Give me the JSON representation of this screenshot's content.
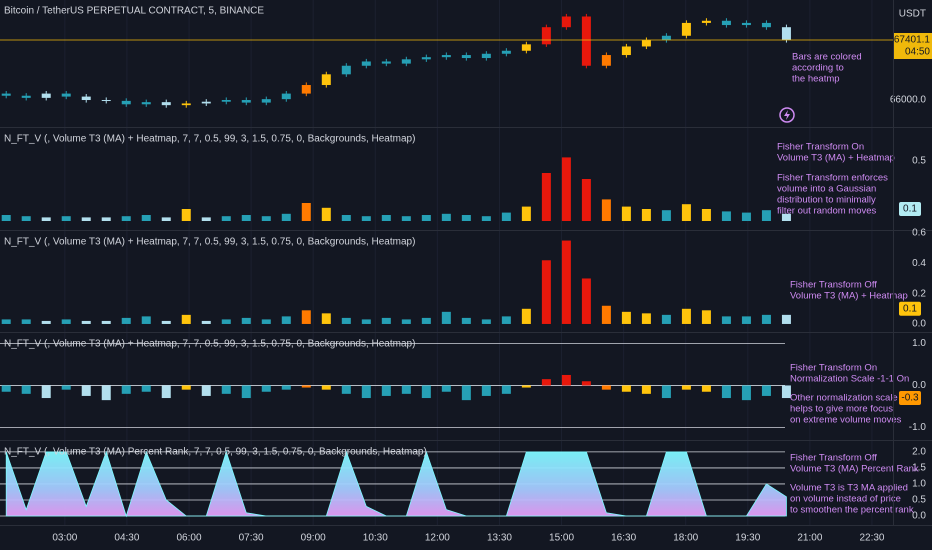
{
  "chart_data": [
    {
      "type": "candlestick",
      "title": "Bitcoin / TetherUS PERPETUAL CONTRACT, 5, BINANCE",
      "currency": "USDT",
      "countdown": "04:50",
      "x": [
        95,
        124,
        153,
        182,
        211,
        240,
        269,
        298,
        327,
        356,
        385,
        414,
        443,
        472,
        501,
        530,
        559,
        588,
        617,
        646,
        675,
        704,
        733,
        762,
        791,
        820,
        849,
        878,
        907,
        936,
        965,
        994,
        1023,
        1052,
        1081,
        1110,
        1139,
        1168,
        1197,
        1226
      ],
      "open": [
        66150,
        66100,
        66050,
        66150,
        66080,
        66000,
        65980,
        65900,
        65950,
        65880,
        65920,
        65960,
        66000,
        65940,
        66020,
        66150,
        66350,
        66600,
        66800,
        66900,
        66850,
        66950,
        67000,
        67050,
        66980,
        67080,
        67150,
        67300,
        67700,
        67950,
        66800,
        67050,
        67250,
        67400,
        67500,
        67800,
        67850,
        67750,
        67800,
        67700
      ],
      "high": [
        66210,
        66160,
        66210,
        66210,
        66140,
        66060,
        66040,
        66010,
        66010,
        65980,
        66020,
        66060,
        66060,
        66080,
        66210,
        66410,
        66660,
        66860,
        66960,
        66960,
        67010,
        67060,
        67110,
        67110,
        67140,
        67210,
        67360,
        67760,
        68010,
        68010,
        67110,
        67310,
        67460,
        67560,
        67860,
        67910,
        67910,
        67860,
        67860,
        67760
      ],
      "low": [
        66040,
        65990,
        65990,
        66020,
        65940,
        65920,
        65840,
        65840,
        65820,
        65820,
        65860,
        65900,
        65880,
        65880,
        65960,
        66090,
        66290,
        66540,
        66740,
        66790,
        66790,
        66890,
        66940,
        66920,
        66920,
        67020,
        67090,
        67240,
        67640,
        66740,
        66740,
        66990,
        67190,
        67340,
        67440,
        67740,
        67690,
        67690,
        67640,
        67341.1
      ],
      "close": [
        66100,
        66050,
        66150,
        66080,
        66000,
        65980,
        65900,
        65950,
        65880,
        65920,
        65960,
        66000,
        65940,
        66020,
        66150,
        66350,
        66600,
        66800,
        66900,
        66850,
        66950,
        67000,
        67050,
        66980,
        67080,
        67150,
        67300,
        67700,
        67950,
        66800,
        67050,
        67250,
        67400,
        67500,
        67800,
        67850,
        67750,
        67800,
        67700,
        67401.1
      ],
      "colors": [
        "#26a0b5",
        "#26a0b5",
        "#b2dfee",
        "#26a0b5",
        "#b2dfee",
        "#b2dfee",
        "#26a0b5",
        "#26a0b5",
        "#b2dfee",
        "#ffc40c",
        "#b2dfee",
        "#26a0b5",
        "#26a0b5",
        "#26a0b5",
        "#26a0b5",
        "#ff7a00",
        "#ffc40c",
        "#26a0b5",
        "#26a0b5",
        "#26a0b5",
        "#26a0b5",
        "#26a0b5",
        "#26a0b5",
        "#26a0b5",
        "#26a0b5",
        "#26a0b5",
        "#ffc40c",
        "#e8180c",
        "#e8180c",
        "#e8180c",
        "#ff7a00",
        "#ffc40c",
        "#ffc40c",
        "#26a0b5",
        "#ffc40c",
        "#ffc40c",
        "#26a0b5",
        "#26a0b5",
        "#26a0b5",
        "#b2dfee"
      ],
      "xlim": [
        86,
        1437
      ],
      "xticks": [
        {
          "value": 180,
          "label": "03:00"
        },
        {
          "value": 270,
          "label": "04:30"
        },
        {
          "value": 360,
          "label": "06:00"
        },
        {
          "value": 450,
          "label": "07:30"
        },
        {
          "value": 540,
          "label": "09:00"
        },
        {
          "value": 630,
          "label": "10:30"
        },
        {
          "value": 720,
          "label": "12:00"
        },
        {
          "value": 810,
          "label": "13:30"
        },
        {
          "value": 900,
          "label": "15:00"
        },
        {
          "value": 990,
          "label": "16:30"
        },
        {
          "value": 1080,
          "label": "18:00"
        },
        {
          "value": 1170,
          "label": "19:30"
        },
        {
          "value": 1260,
          "label": "21:00"
        },
        {
          "value": 1350,
          "label": "22:30"
        }
      ],
      "ylim": [
        65370,
        68335
      ],
      "yticks": [
        {
          "value": 66000,
          "label": "66000.0"
        }
      ],
      "price_line_color": "#f0b90b",
      "annotations": [
        [
          "Bars are colored",
          "according to",
          "the heatmp"
        ]
      ]
    },
    {
      "type": "bar",
      "title": "N_FT_V (, Volume T3 (MA) + Heatmap, 7, 7, 0.5, 99, 3, 1.5, 0.75, 0, Backgrounds, Heatmap)",
      "values": [
        0.05,
        0.04,
        0.03,
        0.04,
        0.03,
        0.03,
        0.04,
        0.05,
        0.03,
        0.1,
        0.03,
        0.04,
        0.05,
        0.04,
        0.06,
        0.15,
        0.11,
        0.05,
        0.04,
        0.05,
        0.04,
        0.05,
        0.06,
        0.05,
        0.04,
        0.07,
        0.12,
        0.4,
        0.53,
        0.35,
        0.18,
        0.12,
        0.1,
        0.09,
        0.14,
        0.1,
        0.08,
        0.07,
        0.09,
        0.06
      ],
      "ylim": [
        -0.075,
        0.775
      ],
      "yticks": [
        0.5
      ],
      "current": {
        "value": 0.1,
        "label": "0.1"
      },
      "current_color": "#b2ebf2",
      "annotations": [
        [
          "Fisher Transform On",
          "Volume T3 (MA) + Heatmap"
        ],
        [
          "Fisher Transform enforces",
          "volume into a Gaussian",
          "distribution to minimally",
          "filter out random moves"
        ]
      ]
    },
    {
      "type": "bar",
      "title": "N_FT_V (, Volume T3 (MA) + Heatmap, 7, 7, 0.5, 99, 3, 1.5, 0.75, 0, Backgrounds, Heatmap)",
      "values": [
        0.03,
        0.03,
        0.02,
        0.03,
        0.02,
        0.02,
        0.04,
        0.05,
        0.02,
        0.06,
        0.02,
        0.03,
        0.04,
        0.03,
        0.05,
        0.09,
        0.07,
        0.04,
        0.03,
        0.04,
        0.03,
        0.04,
        0.08,
        0.04,
        0.03,
        0.05,
        0.1,
        0.42,
        0.55,
        0.3,
        0.12,
        0.08,
        0.07,
        0.06,
        0.1,
        0.09,
        0.05,
        0.05,
        0.06,
        0.06
      ],
      "ylim": [
        -0.053,
        0.613
      ],
      "yticks": [
        0.6,
        0.4,
        0.2,
        {
          "value": 0,
          "label": "0.0"
        }
      ],
      "current": {
        "value": 0.1,
        "label": "0.1"
      },
      "current_color": "#ffc40c",
      "annotations": [
        [
          "Fisher Transform Off",
          "Volume T3 (MA) + Heatmap"
        ]
      ]
    },
    {
      "type": "bar",
      "title": "N_FT_V (, Volume T3 (MA) + Heatmap, 7, 7, 0.5, 99, 3, 1.5, 0.75, 0, Backgrounds, Heatmap)",
      "values": [
        -0.15,
        -0.2,
        -0.3,
        -0.1,
        -0.25,
        -0.35,
        -0.2,
        -0.15,
        -0.3,
        -0.1,
        -0.25,
        -0.2,
        -0.3,
        -0.15,
        -0.1,
        -0.05,
        -0.1,
        -0.2,
        -0.3,
        -0.25,
        -0.2,
        -0.3,
        -0.15,
        -0.35,
        -0.25,
        -0.2,
        -0.05,
        0.15,
        0.25,
        0.1,
        -0.1,
        -0.15,
        -0.2,
        -0.3,
        -0.1,
        -0.15,
        -0.3,
        -0.35,
        -0.25,
        -0.3
      ],
      "ylim": [
        -1.3,
        1.25
      ],
      "yticks": [
        {
          "value": 1,
          "label": "1.0"
        },
        {
          "value": 0,
          "label": "0.0"
        },
        {
          "value": -1,
          "label": "-1.0"
        }
      ],
      "grid": true,
      "grid_color": "#d1d4dc",
      "current": {
        "value": -0.3,
        "label": "-0.3"
      },
      "current_color": "#ff9800",
      "annotations": [
        [
          "Fisher Transform On",
          "Normalization Scale -1-1 On"
        ],
        [
          "Other normalization scale",
          "helps to give more focus",
          "on extreme volume moves"
        ]
      ]
    },
    {
      "type": "area",
      "title": "N_FT_V (, Volume T3 (MA) Percent Rank, 7, 7, 0.5, 99, 3, 1.5, 0.75, 0, Backgrounds, Heatmap)",
      "values": [
        2,
        0.2,
        2,
        2,
        0.3,
        2,
        0,
        2,
        0.5,
        0,
        0,
        2,
        0.1,
        0,
        0,
        0,
        0,
        2,
        0.3,
        0,
        0,
        2,
        0.2,
        0,
        0,
        0,
        2,
        2,
        2,
        2,
        0.1,
        0,
        0,
        2,
        2,
        0,
        0,
        0,
        1,
        0.6
      ],
      "ylim": [
        -0.28,
        2.34
      ],
      "yticks": [
        {
          "value": 2,
          "label": "2.0"
        },
        {
          "value": 1.5,
          "label": "1.5"
        },
        {
          "value": 1,
          "label": "1.0"
        },
        {
          "value": 0.5,
          "label": "0.5"
        },
        {
          "value": 0,
          "label": "0.0"
        }
      ],
      "grid": true,
      "grid_color": "#d1d4dc",
      "color": "#7ef9ff",
      "annotations": [
        [
          "Fisher Transform Off",
          "Volume T3 (MA) Percent Rank"
        ],
        [
          "Volume T3 is T3 MA applied",
          "on volume instead of price",
          "to smoothen the percent rank"
        ]
      ]
    }
  ]
}
